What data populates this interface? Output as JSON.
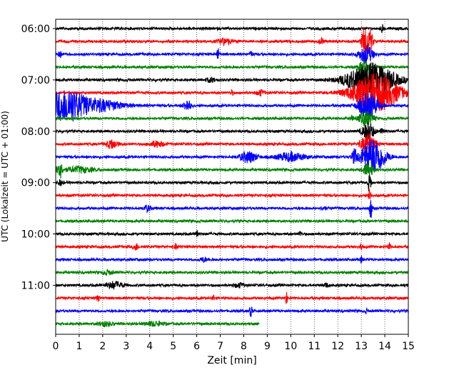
{
  "chart_data": {
    "type": "line",
    "title": "",
    "xlabel": "Zeit  [min]",
    "ylabel": "UTC (Lokalzeit = UTC + 01:00)",
    "xlim": [
      0,
      15
    ],
    "ylim": [
      "06:00",
      "11:59"
    ],
    "x_ticks": [
      "0",
      "1",
      "2",
      "3",
      "4",
      "5",
      "6",
      "7",
      "8",
      "9",
      "10",
      "11",
      "12",
      "13",
      "14",
      "15"
    ],
    "y_ticks": [
      "06:00",
      "07:00",
      "08:00",
      "09:00",
      "10:00",
      "11:00"
    ],
    "grid": "vertical-dotted",
    "color_cycle": [
      "#000000",
      "#ff0000",
      "#0000ff",
      "#008000"
    ],
    "trace_interval_minutes": 15,
    "trace_start": "06:00",
    "traces": [
      {
        "start": "06:00",
        "color": "#000000",
        "end_min": 15
      },
      {
        "start": "06:15",
        "color": "#ff0000",
        "end_min": 15
      },
      {
        "start": "06:30",
        "color": "#0000ff",
        "end_min": 15
      },
      {
        "start": "06:45",
        "color": "#008000",
        "end_min": 15
      },
      {
        "start": "07:00",
        "color": "#000000",
        "end_min": 15
      },
      {
        "start": "07:15",
        "color": "#ff0000",
        "end_min": 15
      },
      {
        "start": "07:30",
        "color": "#0000ff",
        "end_min": 15
      },
      {
        "start": "07:45",
        "color": "#008000",
        "end_min": 15
      },
      {
        "start": "08:00",
        "color": "#000000",
        "end_min": 15
      },
      {
        "start": "08:15",
        "color": "#ff0000",
        "end_min": 15
      },
      {
        "start": "08:30",
        "color": "#0000ff",
        "end_min": 15
      },
      {
        "start": "08:45",
        "color": "#008000",
        "end_min": 15
      },
      {
        "start": "09:00",
        "color": "#000000",
        "end_min": 15
      },
      {
        "start": "09:15",
        "color": "#ff0000",
        "end_min": 15
      },
      {
        "start": "09:30",
        "color": "#0000ff",
        "end_min": 15
      },
      {
        "start": "09:45",
        "color": "#008000",
        "end_min": 15
      },
      {
        "start": "10:00",
        "color": "#000000",
        "end_min": 15
      },
      {
        "start": "10:15",
        "color": "#ff0000",
        "end_min": 15
      },
      {
        "start": "10:30",
        "color": "#0000ff",
        "end_min": 15
      },
      {
        "start": "10:45",
        "color": "#008000",
        "end_min": 15
      },
      {
        "start": "11:00",
        "color": "#000000",
        "end_min": 15
      },
      {
        "start": "11:15",
        "color": "#ff0000",
        "end_min": 15
      },
      {
        "start": "11:30",
        "color": "#0000ff",
        "end_min": 15
      },
      {
        "start": "11:45",
        "color": "#008000",
        "end_min": 8.65
      }
    ]
  }
}
